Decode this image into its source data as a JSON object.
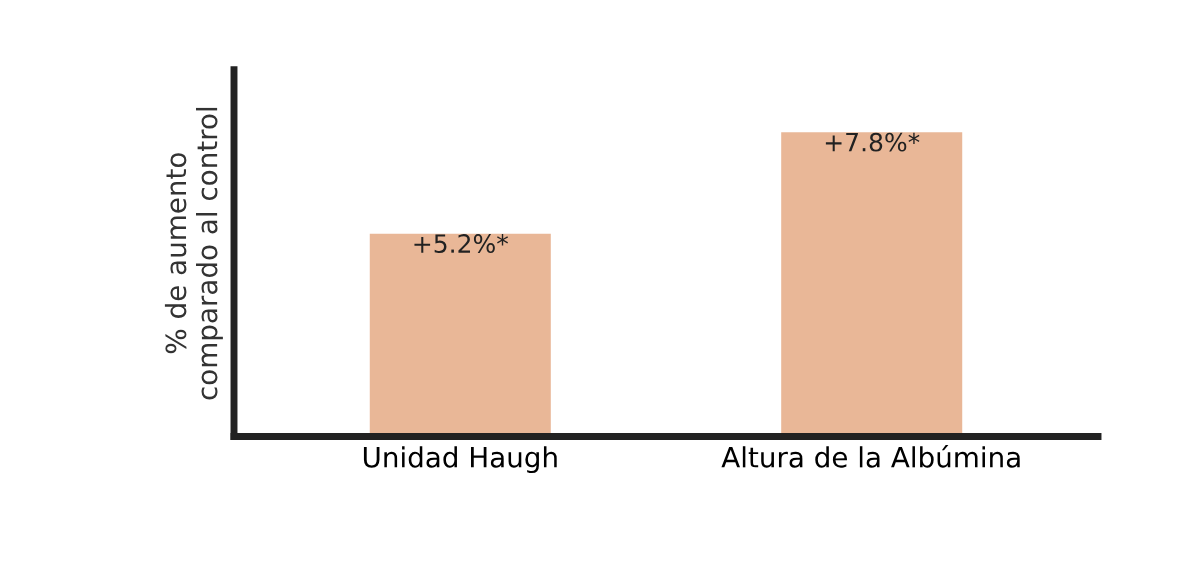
{
  "chart_data": {
    "type": "bar",
    "ylabel": "% de aumento\ncomparado al control",
    "categories": [
      "Unidad Haugh",
      "Altura de la Albúmina"
    ],
    "values": [
      5.2,
      7.8
    ],
    "value_labels": [
      "+5.2%*",
      "+7.8%*"
    ],
    "color": "#e9b797",
    "ylim": [
      0,
      9.4
    ],
    "tick_labels": "x",
    "grid": false,
    "legend": false
  }
}
